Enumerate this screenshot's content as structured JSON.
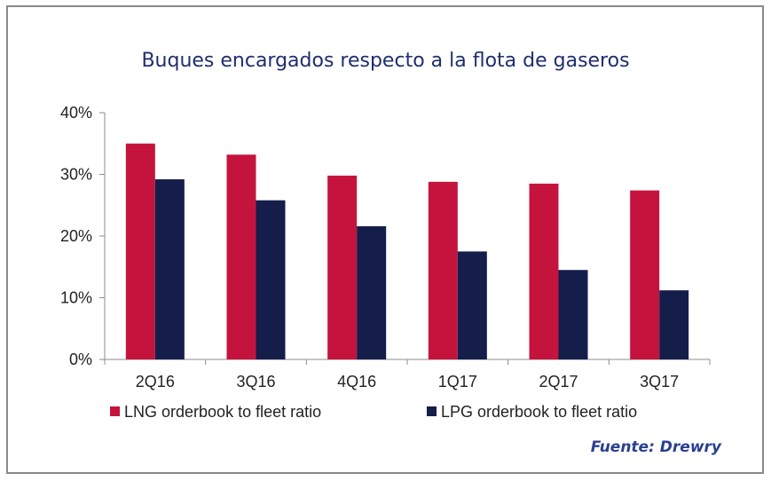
{
  "chart_data": {
    "type": "bar",
    "title": "Buques encargados respecto a la flota de gaseros",
    "categories": [
      "2Q16",
      "3Q16",
      "4Q16",
      "1Q17",
      "2Q17",
      "3Q17"
    ],
    "series": [
      {
        "name": "LNG orderbook to fleet ratio",
        "color": "#c4143d",
        "values": [
          35,
          33.2,
          29.8,
          28.8,
          28.5,
          27.4
        ]
      },
      {
        "name": "LPG orderbook to fleet ratio",
        "color": "#151d4a",
        "values": [
          29.2,
          25.8,
          21.6,
          17.5,
          14.5,
          11.2
        ]
      }
    ],
    "ylim": [
      0,
      40
    ],
    "yticks": [
      "0%",
      "10%",
      "20%",
      "30%",
      "40%"
    ],
    "ytick_values": [
      0,
      10,
      20,
      30,
      40
    ],
    "xlabel": "",
    "ylabel": "",
    "legend": "bottom"
  },
  "source": "Fuente: Drewry"
}
